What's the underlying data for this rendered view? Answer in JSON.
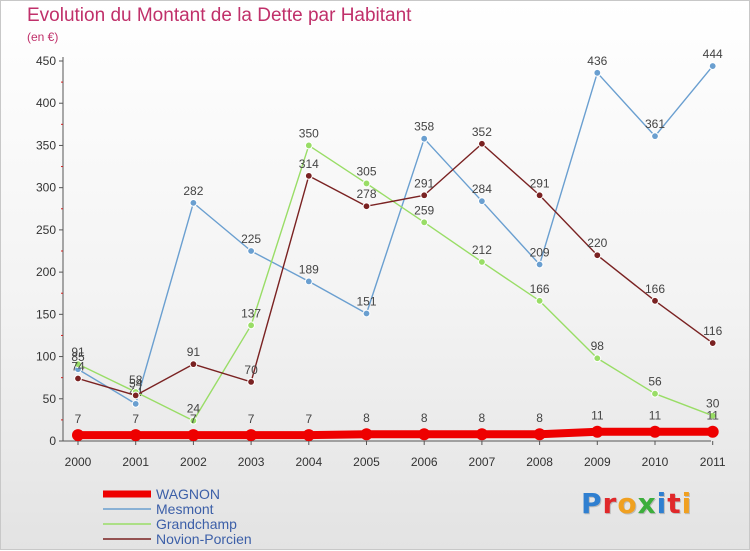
{
  "chart_data": {
    "type": "line",
    "title": "Evolution du Montant de la Dette par Habitant",
    "subtitle": "(en €)",
    "categories": [
      "2000",
      "2001",
      "2002",
      "2003",
      "2004",
      "2005",
      "2006",
      "2007",
      "2008",
      "2009",
      "2010",
      "2011"
    ],
    "ylim": [
      0,
      450
    ],
    "yticks": [
      0,
      50,
      100,
      150,
      200,
      250,
      300,
      350,
      400,
      450
    ],
    "grid": false,
    "legend_position": "bottom-left",
    "series": [
      {
        "name": "WAGNON",
        "color": "#ee0000",
        "values": [
          7,
          7,
          7,
          7,
          7,
          8,
          8,
          8,
          8,
          11,
          11,
          11
        ],
        "labels": [
          "7",
          "7",
          "7",
          "7",
          "7",
          "8",
          "8",
          "8",
          "8",
          "11",
          "11",
          "11"
        ]
      },
      {
        "name": "Mesmont",
        "color": "#6a9fd0",
        "values": [
          85,
          44,
          282,
          225,
          189,
          151,
          358,
          284,
          209,
          436,
          361,
          444
        ],
        "labels": [
          "85",
          "44",
          "282",
          "225",
          "189",
          "151",
          "358",
          "284",
          "209",
          "436",
          "361",
          "444"
        ]
      },
      {
        "name": "Grandchamp",
        "color": "#99dd66",
        "values": [
          91,
          58,
          24,
          137,
          350,
          305,
          259,
          212,
          166,
          98,
          56,
          30
        ],
        "labels": [
          "91",
          "58",
          "24",
          "137",
          "350",
          "305",
          "259",
          "212",
          "166",
          "98",
          "56",
          "30"
        ]
      },
      {
        "name": "Novion-Porcien",
        "color": "#7a2222",
        "values": [
          74,
          54,
          91,
          70,
          314,
          278,
          291,
          352,
          291,
          220,
          166,
          116
        ],
        "labels": [
          "74",
          "54",
          "91",
          "70",
          "314",
          "278",
          "291",
          "352",
          "291",
          "220",
          "166",
          "116"
        ]
      }
    ]
  },
  "logo": {
    "letters": [
      "P",
      "r",
      "o",
      "x",
      "i",
      "t",
      "i"
    ]
  }
}
